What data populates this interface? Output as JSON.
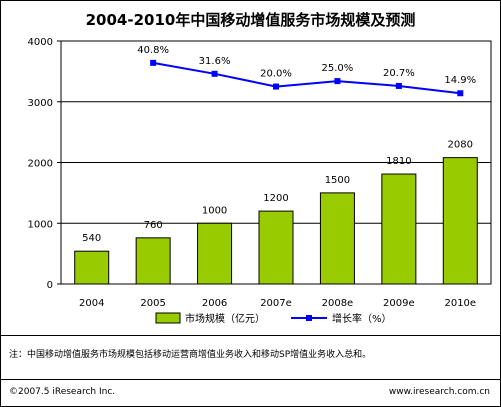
{
  "title": "2004-2010年中国移动增值服务市场规模及预测",
  "note": "注：中国移动增值服务市场规模包括移动运营商增值业务收入和移动SP增值业务收入总和。",
  "copyright": "©2007.5 iResearch Inc.",
  "website": "www.iresearch.com.cn",
  "colors": {
    "bar": "#99CC00",
    "line": "#0000FF"
  },
  "chart_data": {
    "type": "bar",
    "categories": [
      "2004",
      "2005",
      "2006",
      "2007e",
      "2008e",
      "2009e",
      "2010e"
    ],
    "y_ticks": [
      "0",
      "1000",
      "2000",
      "3000",
      "4000"
    ],
    "ylim": [
      0,
      4000
    ],
    "series": [
      {
        "name": "市场规模（亿元）",
        "type": "bar",
        "values": [
          540,
          760,
          1000,
          1200,
          1500,
          1810,
          2080
        ],
        "labels": [
          "540",
          "760",
          "1000",
          "1200",
          "1500",
          "1810",
          "2080"
        ]
      },
      {
        "name": "增长率（%）",
        "type": "line",
        "values": [
          null,
          40.8,
          31.6,
          20.0,
          25.0,
          20.7,
          14.9
        ],
        "labels": [
          "",
          "40.8%",
          "31.6%",
          "20.0%",
          "25.0%",
          "20.7%",
          "14.9%"
        ],
        "display_on_left_axis": [
          null,
          3640,
          3460,
          3250,
          3340,
          3260,
          3140
        ]
      }
    ],
    "grid": true,
    "legend_position": "bottom"
  }
}
